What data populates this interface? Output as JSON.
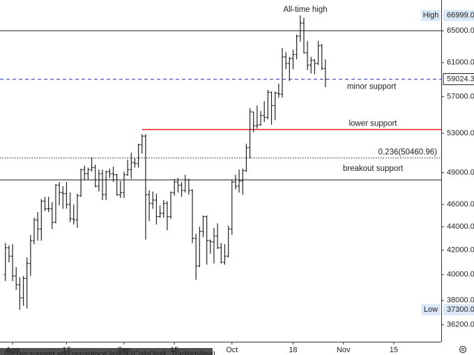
{
  "chart_data": {
    "type": "ohlc",
    "title": "All-time high",
    "caption": "Bitcoin support and resistance levels (CoinDesk, TradingView)",
    "color": "#222222",
    "log_scale": true,
    "x": [
      0,
      1,
      2,
      3,
      4,
      5,
      6,
      7,
      8,
      9,
      10,
      11,
      12,
      13,
      14,
      15,
      16,
      17,
      18,
      19,
      20,
      21,
      22,
      23,
      24,
      25,
      26,
      27,
      28,
      29,
      30,
      31,
      32,
      33,
      34,
      35,
      36,
      37,
      38,
      39,
      40,
      41,
      42,
      43,
      44,
      45,
      46,
      47,
      48,
      49,
      50,
      51,
      52,
      53,
      54,
      55,
      56,
      57,
      58,
      59,
      60,
      61,
      62,
      63,
      64,
      65,
      66,
      67,
      68,
      69,
      70,
      71,
      72,
      73,
      74,
      75,
      76,
      77,
      78,
      79,
      80,
      81,
      82,
      83,
      84,
      85,
      86,
      87,
      88,
      89
    ],
    "opens": [
      40000,
      42200,
      41500,
      39900,
      39200,
      38200,
      39700,
      40900,
      42800,
      44600,
      43800,
      46300,
      45600,
      45600,
      44400,
      47800,
      47100,
      47000,
      46000,
      44700,
      44600,
      46800,
      49300,
      48900,
      49300,
      49500,
      47700,
      48900,
      46900,
      49100,
      48900,
      48800,
      46900,
      47100,
      48800,
      49300,
      50000,
      49900,
      51800,
      52700,
      46900,
      46100,
      46400,
      44900,
      45200,
      46100,
      44900,
      47100,
      48100,
      47800,
      47300,
      48300,
      47300,
      43000,
      40700,
      43600,
      44900,
      42800,
      42700,
      43200,
      42200,
      41000,
      41500,
      43800,
      48100,
      47700,
      48200,
      49200,
      51500,
      55300,
      53800,
      53900,
      54900,
      54700,
      57500,
      56000,
      57400,
      57300,
      61700,
      60900,
      61500,
      62000,
      64300,
      66000,
      62200,
      60700,
      61300,
      60900,
      63100,
      60300
    ],
    "highs": [
      42600,
      42400,
      42500,
      40600,
      39800,
      39900,
      41400,
      43300,
      44800,
      45300,
      46500,
      46700,
      46700,
      46200,
      47900,
      48100,
      47700,
      48100,
      47100,
      46000,
      47000,
      49400,
      49700,
      49500,
      50500,
      49800,
      49300,
      49300,
      49200,
      49400,
      49600,
      48900,
      48200,
      49100,
      50300,
      51000,
      50500,
      51900,
      52900,
      52900,
      47300,
      47200,
      47000,
      45900,
      46400,
      46300,
      47200,
      48400,
      48500,
      48100,
      48800,
      48400,
      47400,
      43400,
      44000,
      45000,
      45000,
      42900,
      43900,
      44300,
      42600,
      42500,
      44100,
      48300,
      48800,
      49300,
      49400,
      51900,
      55700,
      55300,
      56000,
      55400,
      56500,
      57800,
      57600,
      57600,
      58500,
      62800,
      62300,
      61700,
      62600,
      64500,
      66999,
      66700,
      63700,
      61700,
      61400,
      63700,
      63300,
      61400
    ],
    "lows": [
      39500,
      41000,
      39500,
      38800,
      37300,
      37600,
      37400,
      39900,
      42500,
      42800,
      42800,
      45400,
      45300,
      43800,
      44300,
      45900,
      45600,
      45600,
      44400,
      44200,
      43900,
      46700,
      48300,
      48300,
      49100,
      47600,
      47200,
      46400,
      46400,
      48500,
      48100,
      46800,
      46600,
      46600,
      48700,
      48400,
      49500,
      49500,
      50900,
      42900,
      44500,
      45600,
      44200,
      44800,
      44800,
      43700,
      44700,
      46800,
      47100,
      46700,
      47100,
      46900,
      42600,
      39600,
      40600,
      43100,
      40800,
      41700,
      40900,
      42100,
      40900,
      40800,
      41400,
      43300,
      47400,
      47100,
      46900,
      49100,
      50400,
      53100,
      53500,
      53800,
      54200,
      54500,
      53900,
      54400,
      56900,
      56900,
      60200,
      58800,
      60200,
      61400,
      63600,
      62100,
      60100,
      59700,
      59600,
      60700,
      60100,
      58100
    ],
    "closes": [
      42200,
      41500,
      39900,
      39200,
      38200,
      39700,
      40900,
      42800,
      44600,
      43800,
      46300,
      45600,
      45600,
      44400,
      47800,
      47100,
      47000,
      46000,
      44700,
      44600,
      46800,
      49300,
      48900,
      49300,
      49500,
      47700,
      48900,
      46900,
      49100,
      48900,
      48800,
      46900,
      47100,
      48800,
      49300,
      50000,
      49900,
      51800,
      52700,
      46900,
      46100,
      46400,
      44900,
      45200,
      46100,
      44900,
      47100,
      48100,
      47800,
      47300,
      48300,
      47300,
      43000,
      40700,
      43600,
      44900,
      42800,
      42700,
      43200,
      42200,
      41000,
      41500,
      43800,
      48100,
      47700,
      48200,
      49200,
      51500,
      55300,
      53800,
      53900,
      54900,
      54700,
      57500,
      56000,
      57400,
      57300,
      61700,
      60900,
      61500,
      62000,
      64300,
      66000,
      62200,
      60700,
      61300,
      60900,
      63100,
      60300,
      59024.37
    ],
    "xlim": [
      -1.5,
      121.2
    ],
    "xticks": [
      {
        "value": 2,
        "label": "Aug"
      },
      17,
      {
        "value": 33,
        "label": "Sep"
      },
      {
        "value": 47,
        "label": "15"
      },
      {
        "value": 63,
        "label": "Oct"
      },
      {
        "value": 80,
        "label": "18"
      },
      {
        "value": 94,
        "label": "Nov"
      },
      {
        "value": 108,
        "label": "15"
      }
    ],
    "ylim": [
      35000,
      69100
    ],
    "yticks": [
      {
        "value": 36200,
        "label": "36200.00"
      },
      {
        "value": 38000,
        "label": "38000.00"
      },
      {
        "value": 40000,
        "label": "40000.00"
      },
      {
        "value": 42000,
        "label": "42000.00"
      },
      {
        "value": 44000,
        "label": "44000.00"
      },
      {
        "value": 46000,
        "label": "46000.00"
      },
      {
        "value": 49000,
        "label": "49000.00"
      },
      {
        "value": 53000,
        "label": "53000.00"
      },
      {
        "value": 57000,
        "label": "57000.00"
      },
      {
        "value": 61000,
        "label": "61000.00"
      },
      {
        "value": 65000,
        "label": "65000.00"
      }
    ],
    "levels": [
      {
        "value": 65000,
        "color": "#333333",
        "style": "solid"
      },
      {
        "name": "minor support",
        "value": 59024.37,
        "color": "#3949d6",
        "style": "dashed"
      },
      {
        "name": "lower support",
        "value": 53400,
        "color": "#e8312f",
        "style": "solid",
        "from": 38
      },
      {
        "name": "0.236(50460.96)",
        "value": 50460.96,
        "color": "#333333",
        "style": "dotted"
      },
      {
        "name": "breakout support",
        "value": 48300,
        "color": "#333333",
        "style": "solid"
      }
    ],
    "markers": [
      {
        "name": "High",
        "value": 66999,
        "value_label": "66999.00"
      },
      {
        "name": "Low",
        "value": 37300,
        "value_label": "37300.00"
      },
      {
        "value": 59024.37
      }
    ]
  }
}
